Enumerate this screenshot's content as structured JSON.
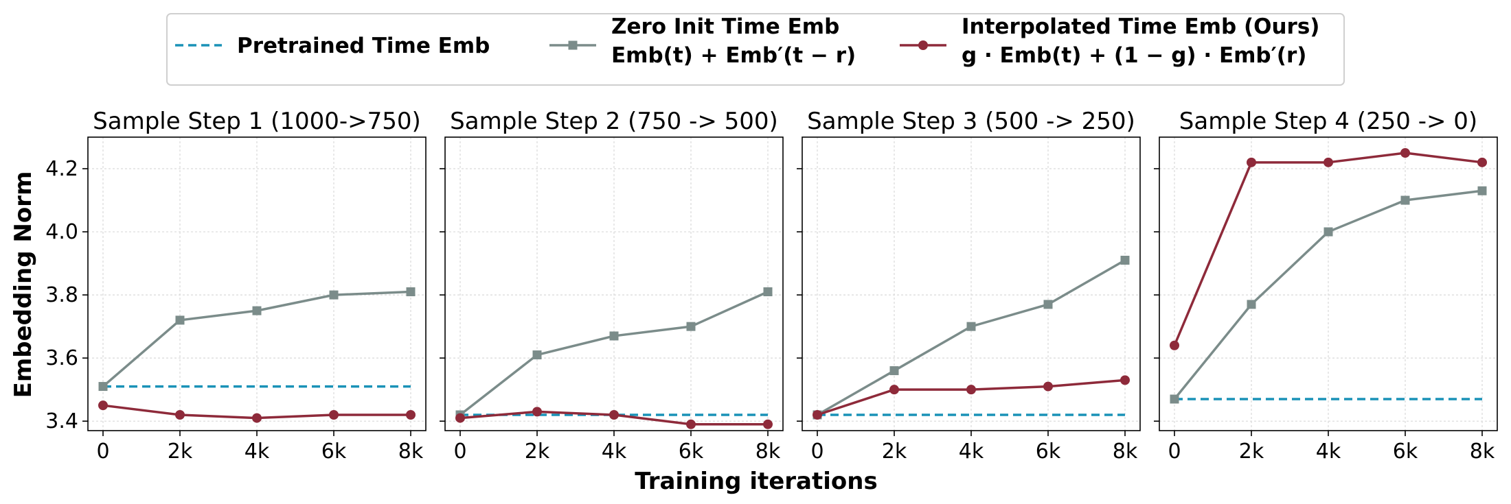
{
  "figure": {
    "ylabel": "Embedding Norm",
    "xlabel": "Training iterations"
  },
  "legend": {
    "placement": "top-center",
    "items": [
      {
        "series": "pretrained",
        "lines": [
          "Pretrained Time Emb"
        ]
      },
      {
        "series": "zero_init",
        "lines": [
          "Zero Init Time Emb",
          "Emb(t) + Emb′(t − r)"
        ]
      },
      {
        "series": "interpolated",
        "lines": [
          "Interpolated Time Emb (Ours)",
          "g · Emb(t) + (1 − g) · Emb′(r)"
        ]
      }
    ]
  },
  "styles": {
    "pretrained": {
      "color": "#1a92b7",
      "dash": true,
      "marker": "none"
    },
    "zero_init": {
      "color": "#7b8c8a",
      "dash": false,
      "marker": "square"
    },
    "interpolated": {
      "color": "#8e2a3a",
      "dash": false,
      "marker": "circle"
    }
  },
  "chart_data": [
    {
      "type": "line",
      "title": "Sample Step 1 (1000->750)",
      "x": [
        0,
        2000,
        4000,
        6000,
        8000
      ],
      "xticklabels": [
        "0",
        "2k",
        "4k",
        "6k",
        "8k"
      ],
      "ylim": [
        3.37,
        4.3
      ],
      "yticks": [
        3.4,
        3.6,
        3.8,
        4.0,
        4.2
      ],
      "yticklabels": [
        "3.4",
        "3.6",
        "3.8",
        "4.0",
        "4.2"
      ],
      "grid": true,
      "series": [
        {
          "key": "pretrained",
          "values": [
            3.51,
            3.51,
            3.51,
            3.51,
            3.51
          ]
        },
        {
          "key": "zero_init",
          "values": [
            3.51,
            3.72,
            3.75,
            3.8,
            3.81
          ]
        },
        {
          "key": "interpolated",
          "values": [
            3.45,
            3.42,
            3.41,
            3.42,
            3.42
          ]
        }
      ]
    },
    {
      "type": "line",
      "title": "Sample Step 2 (750 -> 500)",
      "x": [
        0,
        2000,
        4000,
        6000,
        8000
      ],
      "xticklabels": [
        "0",
        "2k",
        "4k",
        "6k",
        "8k"
      ],
      "ylim": [
        3.37,
        4.3
      ],
      "yticks": [
        3.4,
        3.6,
        3.8,
        4.0,
        4.2
      ],
      "yticklabels": [
        "",
        "",
        "",
        "",
        ""
      ],
      "grid": true,
      "series": [
        {
          "key": "pretrained",
          "values": [
            3.42,
            3.42,
            3.42,
            3.42,
            3.42
          ]
        },
        {
          "key": "zero_init",
          "values": [
            3.42,
            3.61,
            3.67,
            3.7,
            3.81
          ]
        },
        {
          "key": "interpolated",
          "values": [
            3.41,
            3.43,
            3.42,
            3.39,
            3.39
          ]
        }
      ]
    },
    {
      "type": "line",
      "title": "Sample Step 3 (500 -> 250)",
      "x": [
        0,
        2000,
        4000,
        6000,
        8000
      ],
      "xticklabels": [
        "0",
        "2k",
        "4k",
        "6k",
        "8k"
      ],
      "ylim": [
        3.37,
        4.3
      ],
      "yticks": [
        3.4,
        3.6,
        3.8,
        4.0,
        4.2
      ],
      "yticklabels": [
        "",
        "",
        "",
        "",
        ""
      ],
      "grid": true,
      "series": [
        {
          "key": "pretrained",
          "values": [
            3.42,
            3.42,
            3.42,
            3.42,
            3.42
          ]
        },
        {
          "key": "zero_init",
          "values": [
            3.42,
            3.56,
            3.7,
            3.77,
            3.91
          ]
        },
        {
          "key": "interpolated",
          "values": [
            3.42,
            3.5,
            3.5,
            3.51,
            3.53
          ]
        }
      ]
    },
    {
      "type": "line",
      "title": "Sample Step 4 (250 -> 0)",
      "x": [
        0,
        2000,
        4000,
        6000,
        8000
      ],
      "xticklabels": [
        "0",
        "2k",
        "4k",
        "6k",
        "8k"
      ],
      "ylim": [
        3.37,
        4.3
      ],
      "yticks": [
        3.4,
        3.6,
        3.8,
        4.0,
        4.2
      ],
      "yticklabels": [
        "",
        "",
        "",
        "",
        ""
      ],
      "grid": true,
      "series": [
        {
          "key": "pretrained",
          "values": [
            3.47,
            3.47,
            3.47,
            3.47,
            3.47
          ]
        },
        {
          "key": "zero_init",
          "values": [
            3.47,
            3.77,
            4.0,
            4.1,
            4.13
          ]
        },
        {
          "key": "interpolated",
          "values": [
            3.64,
            4.22,
            4.22,
            4.25,
            4.22
          ]
        }
      ]
    }
  ]
}
